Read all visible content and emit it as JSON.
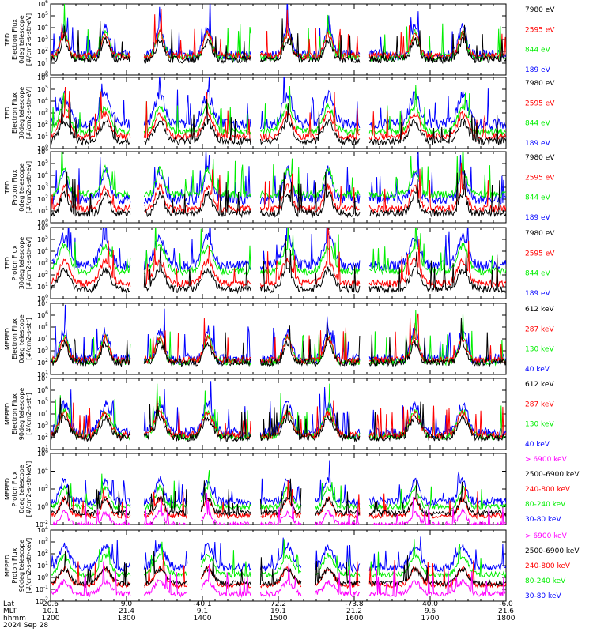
{
  "colors": {
    "black": "#000000",
    "red": "#ff0000",
    "green": "#00ee00",
    "blue": "#0000ff",
    "magenta": "#ff00ff"
  },
  "chart_data": [
    {
      "type": "line",
      "ylabel": [
        "TED",
        "Electron Flux",
        "0deg telescope",
        "[#/cm2-s-str-eV]"
      ],
      "ylim_exp": [
        0,
        6
      ],
      "tick_labels": [
        "10^0",
        "10^1",
        "10^2",
        "10^3",
        "10^4",
        "10^5",
        "10^6"
      ],
      "series": [
        {
          "name": "7980 eV",
          "color": "black"
        },
        {
          "name": "2595 eV",
          "color": "red"
        },
        {
          "name": "844 eV",
          "color": "green"
        },
        {
          "name": "189 eV",
          "color": "blue"
        }
      ],
      "levels": {
        "black": 1.3,
        "red": 1.6,
        "green": 1.5,
        "blue": 1.7
      }
    },
    {
      "type": "line",
      "ylabel": [
        "TED",
        "Electron Flux",
        "30deg telescope",
        "[#/cm2-s-str-eV]"
      ],
      "ylim_exp": [
        0,
        6
      ],
      "tick_labels": [
        "10^0",
        "10^1",
        "10^2",
        "10^3",
        "10^4",
        "10^5",
        "10^6"
      ],
      "series": [
        {
          "name": "7980 eV",
          "color": "black"
        },
        {
          "name": "2595 eV",
          "color": "red"
        },
        {
          "name": "844 eV",
          "color": "green"
        },
        {
          "name": "189 eV",
          "color": "blue"
        }
      ],
      "levels": {
        "black": 0.6,
        "red": 1.0,
        "green": 1.4,
        "blue": 2.1
      }
    },
    {
      "type": "line",
      "ylabel": [
        "TED",
        "Proton Flux",
        "0deg telescope",
        "[#/cm2-s-str-eV]"
      ],
      "ylim_exp": [
        0,
        6
      ],
      "tick_labels": [
        "10^0",
        "10^1",
        "10^2",
        "10^3",
        "10^4",
        "10^5",
        "10^6"
      ],
      "series": [
        {
          "name": "7980 eV",
          "color": "black"
        },
        {
          "name": "2595 eV",
          "color": "red"
        },
        {
          "name": "844 eV",
          "color": "green"
        },
        {
          "name": "189 eV",
          "color": "blue"
        }
      ],
      "levels": {
        "black": 0.8,
        "red": 1.2,
        "green": 2.4,
        "blue": 2.0
      }
    },
    {
      "type": "line",
      "ylabel": [
        "TED",
        "Proton Flux",
        "30deg telescope",
        "[#/cm2-s-str-eV]"
      ],
      "ylim_exp": [
        0,
        6
      ],
      "tick_labels": [
        "10^0",
        "10^1",
        "10^2",
        "10^3",
        "10^4",
        "10^5",
        "10^6"
      ],
      "series": [
        {
          "name": "7980 eV",
          "color": "black"
        },
        {
          "name": "2595 eV",
          "color": "red"
        },
        {
          "name": "844 eV",
          "color": "green"
        },
        {
          "name": "189 eV",
          "color": "blue"
        }
      ],
      "levels": {
        "black": 0.8,
        "red": 1.3,
        "green": 2.3,
        "blue": 2.8
      }
    },
    {
      "type": "line",
      "ylabel": [
        "MEPED",
        "Electron Flux",
        "0deg telescope",
        "[#/cm2-s-str]"
      ],
      "ylim_exp": [
        1,
        7
      ],
      "tick_labels": [
        "10^1",
        "10^2",
        "10^3",
        "10^4",
        "10^5",
        "10^6",
        "10^7"
      ],
      "series": [
        {
          "name": "612 keV",
          "color": "black"
        },
        {
          "name": "287 keV",
          "color": "red"
        },
        {
          "name": "130 keV",
          "color": "green"
        },
        {
          "name": "40 keV",
          "color": "blue"
        }
      ],
      "levels": {
        "black": 2.0,
        "red": 2.2,
        "green": 2.1,
        "blue": 2.3
      }
    },
    {
      "type": "line",
      "ylabel": [
        "MEPED",
        "Electron Flux",
        "90deg telescope",
        "[#/cm2-s-str]"
      ],
      "ylim_exp": [
        1,
        7
      ],
      "tick_labels": [
        "10^1",
        "10^2",
        "10^3",
        "10^4",
        "10^5",
        "10^6",
        "10^7"
      ],
      "series": [
        {
          "name": "612 keV",
          "color": "black"
        },
        {
          "name": "287 keV",
          "color": "red"
        },
        {
          "name": "130 keV",
          "color": "green"
        },
        {
          "name": "40 keV",
          "color": "blue"
        }
      ],
      "levels": {
        "black": 2.0,
        "red": 2.2,
        "green": 2.1,
        "blue": 2.4
      }
    },
    {
      "type": "line",
      "ylabel": [
        "MEPED",
        "Proton Flux",
        "0deg telescope",
        "[#/cm2-s-str-keV]"
      ],
      "ylim_exp": [
        -2,
        6
      ],
      "tick_labels": [
        "10^-2",
        "10^0",
        "10^2",
        "10^4",
        "10^6"
      ],
      "series": [
        {
          "name": "> 6900 keV",
          "color": "magenta"
        },
        {
          "name": "2500-6900 keV",
          "color": "black"
        },
        {
          "name": "240-800 keV",
          "color": "red"
        },
        {
          "name": "80-240 keV",
          "color": "green"
        },
        {
          "name": "30-80 keV",
          "color": "blue"
        }
      ],
      "levels": {
        "magenta": -2.0,
        "black": -0.7,
        "red": -1.0,
        "green": 0.0,
        "blue": 0.6
      }
    },
    {
      "type": "line",
      "ylabel": [
        "MEPED",
        "Proton Flux",
        "90deg telescope",
        "[#/cm2-s-str-keV]"
      ],
      "ylim_exp": [
        -3,
        5
      ],
      "tick_labels": [
        "10^-2",
        "10^-1",
        "10^0",
        "10^1",
        "10^2",
        "10^3",
        "10^4"
      ],
      "series": [
        {
          "name": "> 6900 keV",
          "color": "magenta"
        },
        {
          "name": "2500-6900 keV",
          "color": "black"
        },
        {
          "name": "240-800 keV",
          "color": "red"
        },
        {
          "name": "80-240 keV",
          "color": "green"
        },
        {
          "name": "30-80 keV",
          "color": "blue"
        }
      ],
      "levels": {
        "magenta": -2.2,
        "black": -1.0,
        "red": -1.2,
        "green": 0.0,
        "blue": 0.8
      }
    }
  ],
  "x_axis": {
    "row_labels": [
      "Lat",
      "MLT",
      "hhmm",
      "2024 Sep 28"
    ],
    "ticks": [
      {
        "lat": "20.6",
        "mlt": "10.1",
        "time": "1200",
        "minutes": 0
      },
      {
        "lat": "9.0",
        "mlt": "21.4",
        "time": "1300",
        "minutes": 60
      },
      {
        "lat": "-40.1",
        "mlt": "9.1",
        "time": "1400",
        "minutes": 120
      },
      {
        "lat": "72.2",
        "mlt": "19.1",
        "time": "1500",
        "minutes": 180
      },
      {
        "lat": "-73.8",
        "mlt": "21.2",
        "time": "1600",
        "minutes": 240
      },
      {
        "lat": "40.0",
        "mlt": "9.6",
        "time": "1700",
        "minutes": 300
      },
      {
        "lat": "-6.0",
        "mlt": "21.6",
        "time": "1800",
        "minutes": 360
      }
    ],
    "range_minutes": [
      0,
      360
    ]
  }
}
